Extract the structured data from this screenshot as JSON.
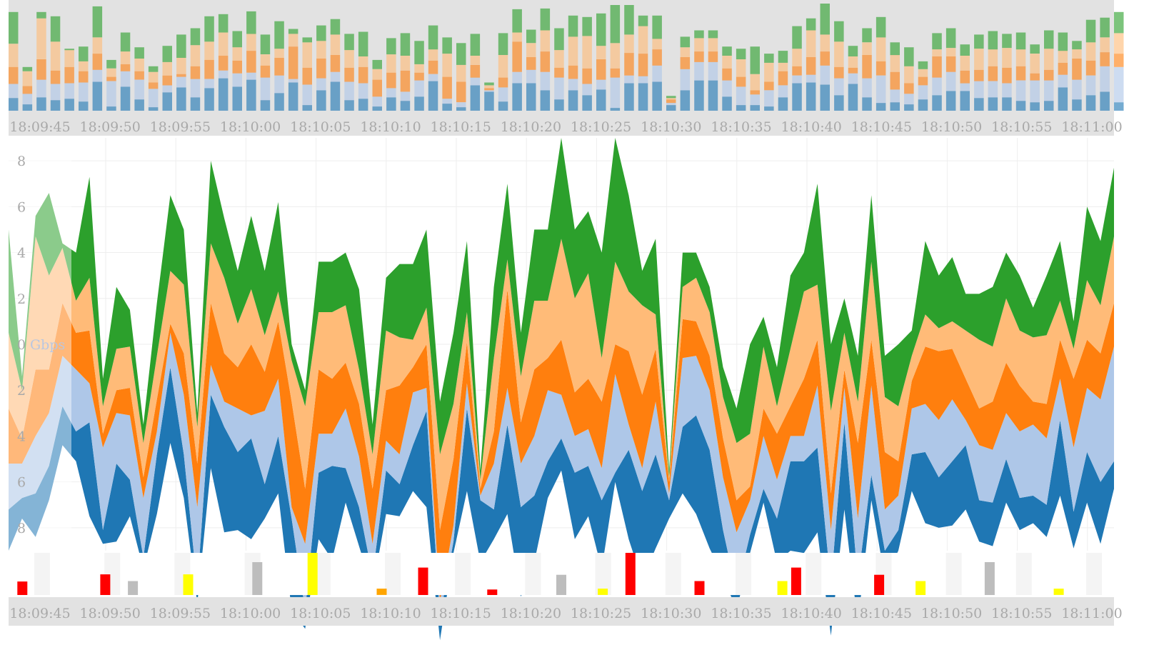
{
  "colors": {
    "series": [
      "#1f77b4",
      "#aec7e8",
      "#ff7f0e",
      "#ffbb78",
      "#2ca02c"
    ],
    "event_red": "#ff0000",
    "event_yellow": "#ffff00",
    "event_gray": "#bdbdbd",
    "event_orange": "#ffa500",
    "panel_bg": "#e2e2e2",
    "grid": "#eeeeee",
    "axis_text": "#a9a9a9"
  },
  "x_ticks": [
    "18:09:45",
    "18:09:50",
    "18:09:55",
    "18:10:00",
    "18:10:05",
    "18:10:10",
    "18:10:15",
    "18:10:20",
    "18:10:25",
    "18:10:30",
    "18:10:35",
    "18:10:40",
    "18:10:45",
    "18:10:50",
    "18:10:55",
    "18:11:00"
  ],
  "y_ticks": [
    "8",
    "6",
    "4",
    "2",
    "0",
    "2",
    "4",
    "6",
    "8"
  ],
  "unit": "Gbps",
  "chart_data": [
    {
      "type": "area",
      "title": "",
      "stacking": "streamgraph",
      "time_range": [
        "18:09:44",
        "18:11:03"
      ],
      "series_colors": [
        "#1f77b4",
        "#aec7e8",
        "#ff7f0e",
        "#ffbb78",
        "#2ca02c"
      ],
      "highlighted_range": [
        "18:09:49",
        "18:11:03"
      ],
      "x_tick_labels": [
        "18:09:45",
        "18:09:50",
        "18:09:55",
        "18:10:00",
        "18:10:05",
        "18:10:10",
        "18:10:15",
        "18:10:20",
        "18:10:25",
        "18:10:30",
        "18:10:35",
        "18:10:40",
        "18:10:45",
        "18:10:50",
        "18:10:55",
        "18:11:00"
      ],
      "y_tick_labels": [
        "8",
        "6",
        "4",
        "2",
        "0",
        "2",
        "4",
        "6",
        "8"
      ],
      "ylabel": "Gbps",
      "ylim": [
        -9,
        9
      ],
      "grid": true,
      "total_upper": [
        5.0,
        -1.4,
        5.6,
        6.6,
        4.4,
        4.0,
        7.3,
        -1.5,
        2.5,
        1.5,
        -3.5,
        1.8,
        6.5,
        5.0,
        -3.0,
        8.0,
        5.5,
        3.2,
        5.6,
        3.2,
        6.2,
        0.0,
        -2.0,
        3.6,
        3.6,
        4.0,
        2.4,
        -3.5,
        2.9,
        3.5,
        3.5,
        5.0,
        -2.5,
        0.5,
        4.5,
        -5.5,
        2.5,
        7.0,
        0.5,
        5.0,
        5.0,
        9.0,
        5.0,
        5.8,
        4.0,
        9.0,
        6.5,
        3.2,
        4.6,
        -5.5,
        4.0,
        4.0,
        2.5,
        -1.0,
        -2.8,
        0.0,
        1.2,
        -1.0,
        3.0,
        4.0,
        7.0,
        0.0,
        2.0,
        -0.5,
        6.5,
        -0.5,
        0.0,
        0.6,
        4.5,
        3.0,
        3.8,
        2.2,
        2.2,
        2.5,
        4.0,
        3.0,
        1.6,
        3.0,
        4.5,
        1.0,
        6.0,
        4.5,
        7.7
      ],
      "series": [
        {
          "color": "#1f77b4",
          "thickness": [
            1.8,
            0.9,
            1.9,
            1.5,
            1.7,
            1.3,
            4.1,
            0.6,
            3.4,
            1.6,
            0.5,
            2.6,
            3.3,
            1.9,
            0.7,
            3.2,
            4.6,
            3.4,
            4.4,
            1.5,
            2.5,
            4.0,
            0.8,
            2.9,
            4.1,
            1.5,
            1.7,
            0.6,
            1.9,
            1.4,
            2.0,
            4.2,
            1.0,
            0.5,
            3.6,
            2.7,
            1.3,
            3.9,
            3.9,
            2.9,
            1.6,
            1.4,
            2.9,
            2.2,
            3.0,
            0.4,
            3.9,
            3.9,
            4.1,
            0.8,
            2.9,
            4.3,
            4.3,
            2.0,
            0.8,
            0.8,
            0.6,
            1.9,
            3.9,
            4.0,
            3.7,
            2.2,
            3.8,
            1.9,
            1.1,
            1.2,
            0.9,
            1.6,
            3.1,
            2.2,
            2.8,
            2.8,
            1.8,
            1.9,
            1.9,
            1.4,
            1.2,
            1.4,
            3.3,
            1.6,
            2.2,
            2.7,
            1.2
          ]
        },
        {
          "color": "#aec7e8",
          "thickness": [
            2.0,
            1.5,
            2.5,
            2.3,
            2.2,
            2.7,
            1.7,
            3.6,
            2.2,
            2.8,
            2.6,
            1.0,
            1.5,
            2.6,
            3.5,
            1.3,
            1.1,
            1.9,
            1.0,
            3.2,
            2.5,
            0.5,
            2.9,
            1.7,
            1.4,
            2.6,
            2.2,
            1.4,
            1.3,
            1.3,
            2.3,
            1.0,
            0.7,
            0.7,
            1.1,
            0.2,
            2.0,
            1.6,
            1.9,
            2.6,
            3.1,
            1.9,
            1.6,
            1.6,
            1.4,
            4.3,
            1.1,
            1.0,
            2.3,
            0.3,
            3.0,
            2.6,
            2.6,
            2.3,
            2.6,
            1.5,
            2.3,
            1.7,
            1.1,
            1.1,
            2.7,
            2.4,
            1.5,
            2.7,
            3.9,
            1.8,
            1.5,
            2.0,
            2.1,
            2.5,
            2.7,
            1.1,
            2.4,
            2.3,
            2.0,
            2.9,
            3.1,
            2.9,
            1.8,
            2.8,
            2.8,
            3.6,
            5.0
          ]
        },
        {
          "color": "#ff7f0e",
          "thickness": [
            2.4,
            1.1,
            2.9,
            1.9,
            2.3,
            1.6,
            2.3,
            0.6,
            1.0,
            1.2,
            0.9,
            1.4,
            0.4,
            1.8,
            1.9,
            2.7,
            2.1,
            1.8,
            3.1,
            1.7,
            2.5,
            4.6,
            2.4,
            2.8,
            2.4,
            2.0,
            2.3,
            2.4,
            2.2,
            3.0,
            1.1,
            1.9,
            3.1,
            2.9,
            1.8,
            0.3,
            1.4,
            4.3,
            1.8,
            2.9,
            1.4,
            2.4,
            1.9,
            2.2,
            2.9,
            1.3,
            3.2,
            3.2,
            2.3,
            0.5,
            1.7,
            1.5,
            1.5,
            1.7,
            1.4,
            0.6,
            1.2,
            2.0,
            1.3,
            2.5,
            2.0,
            1.6,
            0.8,
            3.3,
            2.0,
            2.5,
            1.5,
            1.2,
            2.5,
            3.0,
            2.2,
            1.8,
            1.6,
            2.1,
            2.2,
            2.0,
            1.0,
            1.5,
            1.7,
            3.0,
            2.1,
            2.0,
            1.9
          ]
        },
        {
          "color": "#ffbb78",
          "thickness": [
            3.3,
            2.1,
            5.8,
            4.1,
            2.4,
            1.4,
            2.3,
            1.2,
            1.8,
            1.8,
            1.5,
            1.9,
            2.3,
            3.0,
            1.6,
            2.6,
            3.3,
            1.9,
            2.4,
            1.6,
            1.3,
            1.8,
            3.6,
            2.5,
            2.9,
            2.5,
            1.5,
            1.5,
            2.6,
            2.1,
            1.2,
            1.6,
            3.3,
            2.4,
            1.3,
            0.4,
            3.2,
            1.3,
            2.0,
            3.0,
            2.5,
            4.4,
            4.1,
            4.6,
            1.9,
            3.6,
            2.6,
            3.9,
            1.5,
            0.2,
            1.4,
            1.9,
            1.9,
            1.8,
            2.5,
            2.3,
            2.7,
            1.2,
            2.5,
            3.8,
            2.4,
            3.6,
            1.6,
            1.8,
            3.4,
            2.4,
            2.4,
            1.1,
            1.4,
            1.0,
            1.2,
            2.1,
            3.0,
            2.4,
            2.8,
            2.4,
            2.8,
            3.0,
            1.7,
            1.3,
            2.6,
            2.1,
            2.9
          ]
        },
        {
          "color": "#2ca02c",
          "thickness": [
            4.5,
            0.6,
            0.9,
            3.6,
            0.2,
            2.1,
            4.4,
            1.2,
            2.7,
            1.6,
            0.8,
            2.3,
            3.3,
            2.4,
            0.6,
            3.6,
            2.6,
            2.3,
            3.2,
            2.8,
            3.9,
            0.7,
            0.7,
            2.2,
            2.2,
            2.3,
            3.5,
            1.3,
            2.3,
            3.2,
            3.3,
            3.4,
            2.3,
            3.1,
            3.1,
            0.4,
            3.1,
            3.3,
            1.9,
            3.1,
            3.1,
            4.4,
            3.0,
            2.7,
            4.6,
            5.4,
            4.2,
            1.5,
            3.3,
            0.3,
            1.5,
            1.1,
            1.1,
            1.3,
            1.5,
            3.9,
            1.3,
            1.7,
            3.2,
            1.7,
            4.4,
            2.9,
            1.5,
            2.0,
            2.9,
            1.8,
            2.7,
            1.1,
            3.2,
            2.3,
            2.8,
            1.6,
            2.0,
            2.6,
            2.0,
            2.4,
            1.3,
            2.6,
            2.6,
            1.2,
            3.2,
            2.8,
            3.0
          ]
        }
      ]
    },
    {
      "type": "bar",
      "title": "",
      "stacking": "stacked",
      "series_colors": [
        "#1f77b4",
        "#aec7e8",
        "#ff7f0e",
        "#ffbb78",
        "#2ca02c"
      ],
      "x_tick_labels": [
        "18:09:45",
        "18:09:50",
        "18:09:55",
        "18:10:00",
        "18:10:05",
        "18:10:10",
        "18:10:15",
        "18:10:20",
        "18:10:25",
        "18:10:30",
        "18:10:35",
        "18:10:40",
        "18:10:45",
        "18:10:50",
        "18:10:55",
        "18:11:00"
      ],
      "note": "overview brush of the same series"
    },
    {
      "type": "bar",
      "title": "",
      "x_tick_labels": [
        "18:09:45",
        "18:09:50",
        "18:09:55",
        "18:10:00",
        "18:10:05",
        "18:10:10",
        "18:10:15",
        "18:10:20",
        "18:10:25",
        "18:10:30",
        "18:10:35",
        "18:10:40",
        "18:10:45",
        "18:10:50",
        "18:10:55",
        "18:11:00"
      ],
      "events": [
        {
          "t": 1,
          "value": 0.32,
          "color": "#ff0000"
        },
        {
          "t": 7,
          "value": 0.49,
          "color": "#ff0000"
        },
        {
          "t": 9,
          "value": 0.33,
          "color": "#bdbdbd"
        },
        {
          "t": 13,
          "value": 0.49,
          "color": "#ffff00"
        },
        {
          "t": 18,
          "value": 0.78,
          "color": "#bdbdbd"
        },
        {
          "t": 22,
          "value": 1.0,
          "color": "#ffff00"
        },
        {
          "t": 27,
          "value": 0.15,
          "color": "#ffa500"
        },
        {
          "t": 30,
          "value": 0.65,
          "color": "#ff0000"
        },
        {
          "t": 35,
          "value": 0.13,
          "color": "#ff0000"
        },
        {
          "t": 40,
          "value": 0.48,
          "color": "#bdbdbd"
        },
        {
          "t": 43,
          "value": 0.15,
          "color": "#ffff00"
        },
        {
          "t": 45,
          "value": 1.0,
          "color": "#ff0000"
        },
        {
          "t": 50,
          "value": 0.33,
          "color": "#ff0000"
        },
        {
          "t": 56,
          "value": 0.33,
          "color": "#ffff00"
        },
        {
          "t": 57,
          "value": 0.65,
          "color": "#ff0000"
        },
        {
          "t": 63,
          "value": 0.48,
          "color": "#ff0000"
        },
        {
          "t": 66,
          "value": 0.33,
          "color": "#ffff00"
        },
        {
          "t": 71,
          "value": 0.78,
          "color": "#bdbdbd"
        },
        {
          "t": 76,
          "value": 0.15,
          "color": "#ffff00"
        }
      ]
    }
  ]
}
